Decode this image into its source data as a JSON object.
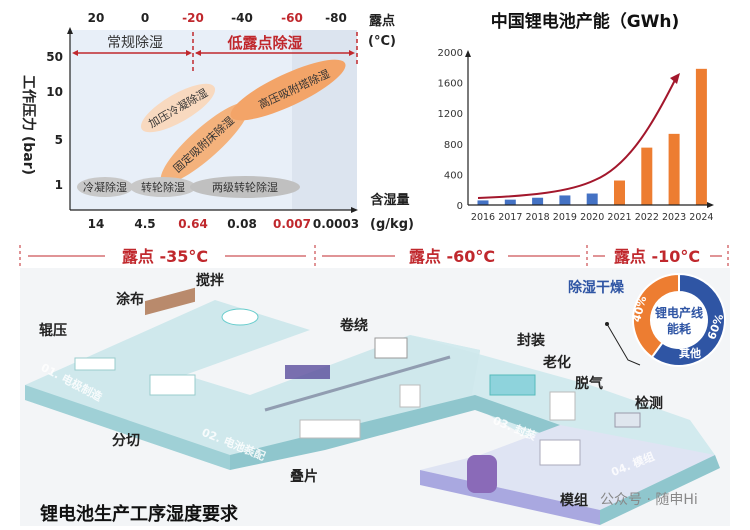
{
  "chart_data": [
    {
      "type": "scatter",
      "top_axis": {
        "label_line1": "露点",
        "label_line2": "(°C)",
        "ticks": [
          "20",
          "0",
          "-20",
          "-40",
          "-60",
          "-80"
        ],
        "highlight_ticks": [
          "-20",
          "-60"
        ]
      },
      "x_axis": {
        "label_line1": "含湿量",
        "label_line2": "(g/kg)",
        "ticks": [
          "14",
          "4.5",
          "0.64",
          "0.08",
          "0.007",
          "0.0003"
        ],
        "highlight_ticks": [
          "0.64",
          "0.007"
        ]
      },
      "y_axis": {
        "label": "工作压力 (bar)",
        "ticks": [
          "50",
          "10",
          "5",
          "1"
        ]
      },
      "regions": [
        {
          "label": "常规除湿",
          "color": "#333333"
        },
        {
          "label": "低露点除湿",
          "color": "#c0282d"
        }
      ],
      "technologies": [
        {
          "label": "加压冷凝除湿",
          "color": "#f8d9bf"
        },
        {
          "label": "固定吸附床除湿",
          "color": "#f4b27c"
        },
        {
          "label": "高压吸附塔除湿",
          "color": "#f3a468"
        },
        {
          "label": "冷凝除湿",
          "color": "#c8c8c8"
        },
        {
          "label": "转轮除湿",
          "color": "#c8c8c8"
        },
        {
          "label": "两级转轮除湿",
          "color": "#c0c0c0"
        }
      ]
    },
    {
      "type": "bar",
      "title": "中国锂电池产能（GWh)",
      "categories": [
        "2016",
        "2017",
        "2018",
        "2019",
        "2020",
        "2021",
        "2022",
        "2023",
        "2024"
      ],
      "values": [
        60,
        70,
        95,
        125,
        150,
        320,
        750,
        930,
        1780
      ],
      "bar_colors": [
        "#4472c4",
        "#4472c4",
        "#4472c4",
        "#4472c4",
        "#4472c4",
        "#ed7d31",
        "#ed7d31",
        "#ed7d31",
        "#ed7d31"
      ],
      "yticks": [
        "0",
        "400",
        "800",
        "1200",
        "1600",
        "2000"
      ],
      "ylim": [
        0,
        2000
      ],
      "trend_color": "#a3172c"
    },
    {
      "type": "pie",
      "center_label_line1": "锂电产线",
      "center_label_line2": "能耗",
      "slices": [
        {
          "label": "除湿干燥",
          "value": 40,
          "value_label": "40%",
          "color": "#ed7d31"
        },
        {
          "label": "其他",
          "value": 60,
          "value_label": "60%",
          "color": "#2f55a4"
        }
      ]
    }
  ],
  "process": {
    "title": "锂电池生产工序湿度要求",
    "dew_points": [
      "露点 -35°C",
      "露点 -60°C",
      "露点 -10°C"
    ],
    "zones": [
      "01. 电极制造",
      "02. 电池装配",
      "03. 封装",
      "04. 模组"
    ],
    "steps": [
      "搅拌",
      "涂布",
      "辊压",
      "分切",
      "卷绕",
      "叠片",
      "封装",
      "老化",
      "脱气",
      "检测",
      "模组"
    ],
    "watermark": "公众号 · 随申Hi"
  }
}
